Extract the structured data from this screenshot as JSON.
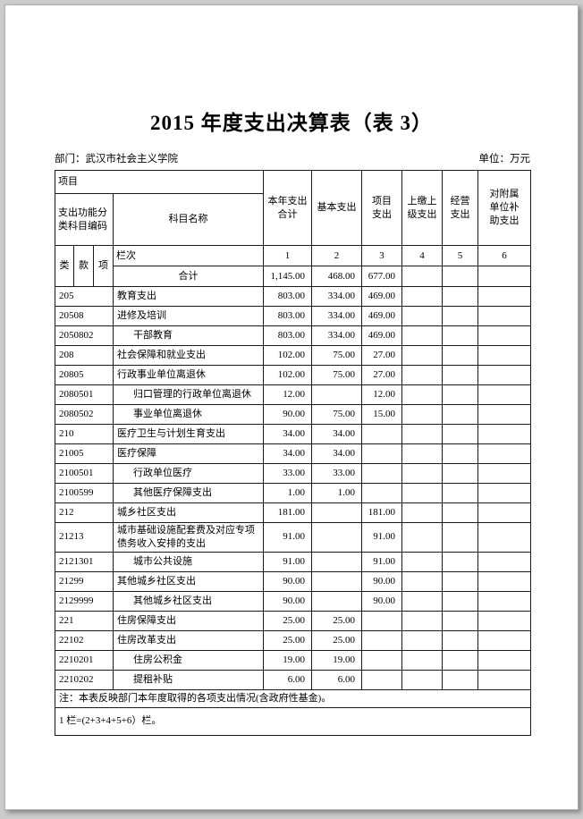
{
  "page": {
    "title": "2015 年度支出决算表（表 3）",
    "department_label": "部门：武汉市社会主义学院",
    "unit_label": "单位：万元"
  },
  "table": {
    "header": {
      "project": "项目",
      "code_group": "支出功能分类科目编码",
      "subject_name": "科目名称",
      "code_cols": [
        "类",
        "款",
        "项"
      ],
      "value_cols": [
        "本年支出合计",
        "基本支出",
        "项目支出",
        "上缴上级支出",
        "经营支出",
        "对附属单位补助支出"
      ],
      "lanci_label": "栏次",
      "col_numbers": [
        "1",
        "2",
        "3",
        "4",
        "5",
        "6"
      ],
      "total_label": "合计",
      "total_values": [
        "1,145.00",
        "468.00",
        "677.00",
        "",
        "",
        ""
      ]
    },
    "rows": [
      {
        "code": "205",
        "name": "教育支出",
        "indent": false,
        "values": [
          "803.00",
          "334.00",
          "469.00",
          "",
          "",
          ""
        ]
      },
      {
        "code": "20508",
        "name": "进修及培训",
        "indent": false,
        "values": [
          "803.00",
          "334.00",
          "469.00",
          "",
          "",
          ""
        ]
      },
      {
        "code": "2050802",
        "name": "干部教育",
        "indent": true,
        "values": [
          "803.00",
          "334.00",
          "469.00",
          "",
          "",
          ""
        ]
      },
      {
        "code": "208",
        "name": "社会保障和就业支出",
        "indent": false,
        "values": [
          "102.00",
          "75.00",
          "27.00",
          "",
          "",
          ""
        ]
      },
      {
        "code": "20805",
        "name": "行政事业单位离退休",
        "indent": false,
        "values": [
          "102.00",
          "75.00",
          "27.00",
          "",
          "",
          ""
        ]
      },
      {
        "code": "2080501",
        "name": "归口管理的行政单位离退休",
        "indent": true,
        "values": [
          "12.00",
          "",
          "12.00",
          "",
          "",
          ""
        ]
      },
      {
        "code": "2080502",
        "name": "事业单位离退休",
        "indent": true,
        "values": [
          "90.00",
          "75.00",
          "15.00",
          "",
          "",
          ""
        ]
      },
      {
        "code": "210",
        "name": "医疗卫生与计划生育支出",
        "indent": false,
        "values": [
          "34.00",
          "34.00",
          "",
          "",
          "",
          ""
        ]
      },
      {
        "code": "21005",
        "name": "医疗保障",
        "indent": false,
        "values": [
          "34.00",
          "34.00",
          "",
          "",
          "",
          ""
        ]
      },
      {
        "code": "2100501",
        "name": "行政单位医疗",
        "indent": true,
        "values": [
          "33.00",
          "33.00",
          "",
          "",
          "",
          ""
        ]
      },
      {
        "code": "2100599",
        "name": "其他医疗保障支出",
        "indent": true,
        "values": [
          "1.00",
          "1.00",
          "",
          "",
          "",
          ""
        ]
      },
      {
        "code": "212",
        "name": "城乡社区支出",
        "indent": false,
        "values": [
          "181.00",
          "",
          "181.00",
          "",
          "",
          ""
        ]
      },
      {
        "code": "21213",
        "name": "城市基础设施配套费及对应专项债务收入安排的支出",
        "indent": false,
        "values": [
          "91.00",
          "",
          "91.00",
          "",
          "",
          ""
        ]
      },
      {
        "code": "2121301",
        "name": "城市公共设施",
        "indent": true,
        "values": [
          "91.00",
          "",
          "91.00",
          "",
          "",
          ""
        ]
      },
      {
        "code": "21299",
        "name": "其他城乡社区支出",
        "indent": false,
        "values": [
          "90.00",
          "",
          "90.00",
          "",
          "",
          ""
        ]
      },
      {
        "code": "2129999",
        "name": "其他城乡社区支出",
        "indent": true,
        "values": [
          "90.00",
          "",
          "90.00",
          "",
          "",
          ""
        ]
      },
      {
        "code": "221",
        "name": "住房保障支出",
        "indent": false,
        "values": [
          "25.00",
          "25.00",
          "",
          "",
          "",
          ""
        ]
      },
      {
        "code": "22102",
        "name": "住房改革支出",
        "indent": false,
        "values": [
          "25.00",
          "25.00",
          "",
          "",
          "",
          ""
        ]
      },
      {
        "code": "2210201",
        "name": "住房公积金",
        "indent": true,
        "values": [
          "19.00",
          "19.00",
          "",
          "",
          "",
          ""
        ]
      },
      {
        "code": "2210202",
        "name": "提租补贴",
        "indent": true,
        "values": [
          "6.00",
          "6.00",
          "",
          "",
          "",
          ""
        ]
      }
    ],
    "notes": [
      "注：本表反映部门本年度取得的各项支出情况(含政府性基金)。",
      "1 栏=(2+3+4+5+6）栏。"
    ]
  }
}
